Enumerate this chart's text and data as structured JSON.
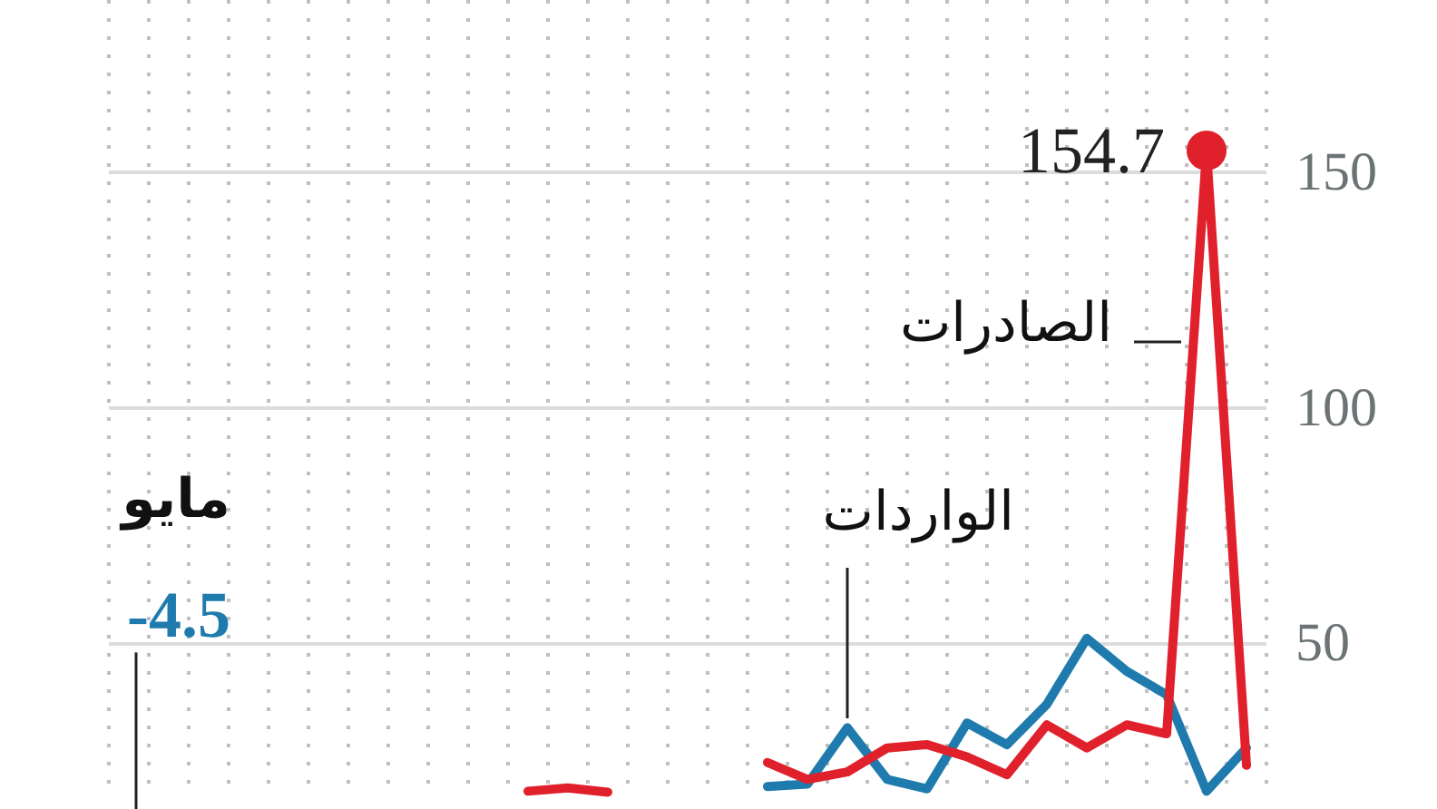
{
  "chart_data": {
    "type": "line",
    "categories": [
      null,
      null,
      null,
      null,
      null,
      null,
      null,
      null,
      null,
      null,
      null,
      null,
      null,
      null,
      null,
      null,
      null,
      null,
      null,
      null,
      null,
      null,
      null,
      null,
      null,
      null,
      null,
      null,
      null
    ],
    "series": [
      {
        "name": "الصادرات",
        "color": "#e0202b",
        "values": [
          null,
          null,
          null,
          null,
          null,
          null,
          null,
          null,
          null,
          null,
          18.5,
          19.2,
          18.3,
          null,
          null,
          null,
          24.6,
          21,
          22.6,
          27.7,
          28.4,
          25.8,
          22,
          32.6,
          27.7,
          32.6,
          30.7,
          154.7,
          24
        ],
        "value_labels": [
          null,
          null,
          null,
          null,
          null,
          null,
          null,
          null,
          null,
          null,
          null,
          null,
          null,
          null,
          null,
          null,
          null,
          null,
          null,
          null,
          null,
          null,
          null,
          null,
          null,
          null,
          null,
          "154.7",
          null
        ]
      },
      {
        "name": "الواردات",
        "color": "#1f7bad",
        "values": [
          null,
          null,
          null,
          null,
          null,
          null,
          null,
          null,
          null,
          null,
          null,
          null,
          null,
          null,
          null,
          null,
          19.5,
          20,
          32,
          21,
          19,
          33,
          28.4,
          37,
          51,
          44,
          39,
          18.5,
          27.7
        ]
      }
    ],
    "annotations": [
      "مايو",
      "-4.5"
    ],
    "ylim": [
      17.8,
      186.7
    ],
    "yticks": [
      50,
      100,
      150
    ],
    "grid": true,
    "marker": "none",
    "line_style": "solid",
    "legend": false
  }
}
